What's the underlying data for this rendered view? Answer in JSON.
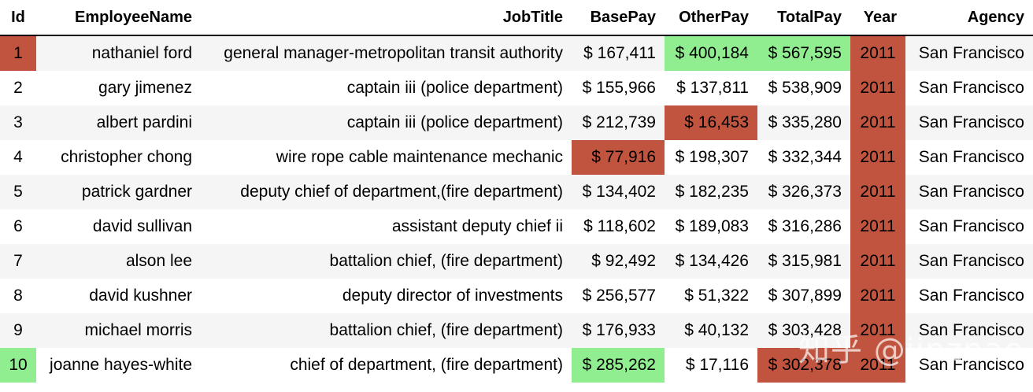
{
  "columns": {
    "id": "Id",
    "employee_name": "EmployeeName",
    "job_title": "JobTitle",
    "base_pay": "BasePay",
    "other_pay": "OtherPay",
    "total_pay": "TotalPay",
    "year": "Year",
    "agency": "Agency"
  },
  "rows": [
    {
      "id": "1",
      "name": "nathaniel ford",
      "job": "general manager-metropolitan transit authority",
      "base": "$ 167,411",
      "other": "$ 400,184",
      "total": "$ 567,595",
      "year": "2011",
      "agency": "San Francisco"
    },
    {
      "id": "2",
      "name": "gary jimenez",
      "job": "captain iii (police department)",
      "base": "$ 155,966",
      "other": "$ 137,811",
      "total": "$ 538,909",
      "year": "2011",
      "agency": "San Francisco"
    },
    {
      "id": "3",
      "name": "albert pardini",
      "job": "captain iii (police department)",
      "base": "$ 212,739",
      "other": "$ 16,453",
      "total": "$ 335,280",
      "year": "2011",
      "agency": "San Francisco"
    },
    {
      "id": "4",
      "name": "christopher chong",
      "job": "wire rope cable maintenance mechanic",
      "base": "$ 77,916",
      "other": "$ 198,307",
      "total": "$ 332,344",
      "year": "2011",
      "agency": "San Francisco"
    },
    {
      "id": "5",
      "name": "patrick gardner",
      "job": "deputy chief of department,(fire department)",
      "base": "$ 134,402",
      "other": "$ 182,235",
      "total": "$ 326,373",
      "year": "2011",
      "agency": "San Francisco"
    },
    {
      "id": "6",
      "name": "david sullivan",
      "job": "assistant deputy chief ii",
      "base": "$ 118,602",
      "other": "$ 189,083",
      "total": "$ 316,286",
      "year": "2011",
      "agency": "San Francisco"
    },
    {
      "id": "7",
      "name": "alson lee",
      "job": "battalion chief, (fire department)",
      "base": "$ 92,492",
      "other": "$ 134,426",
      "total": "$ 315,981",
      "year": "2011",
      "agency": "San Francisco"
    },
    {
      "id": "8",
      "name": "david kushner",
      "job": "deputy director of investments",
      "base": "$ 256,577",
      "other": "$ 51,322",
      "total": "$ 307,899",
      "year": "2011",
      "agency": "San Francisco"
    },
    {
      "id": "9",
      "name": "michael morris",
      "job": "battalion chief, (fire department)",
      "base": "$ 176,933",
      "other": "$ 40,132",
      "total": "$ 303,428",
      "year": "2011",
      "agency": "San Francisco"
    },
    {
      "id": "10",
      "name": "joanne hayes-white",
      "job": "chief of department, (fire department)",
      "base": "$ 285,262",
      "other": "$ 17,116",
      "total": "$ 302,378",
      "year": "2011",
      "agency": "San Francisco"
    }
  ],
  "highlights": {
    "max_color": "#90ee90",
    "min_color": "#c0543f",
    "max_cells": {
      "id": 9,
      "base": 9,
      "other": 0,
      "total": 0
    },
    "min_cells": {
      "id": 0,
      "base": 3,
      "other": 2,
      "total": 9,
      "year": "all"
    }
  },
  "watermark": "知乎 @jinznao"
}
